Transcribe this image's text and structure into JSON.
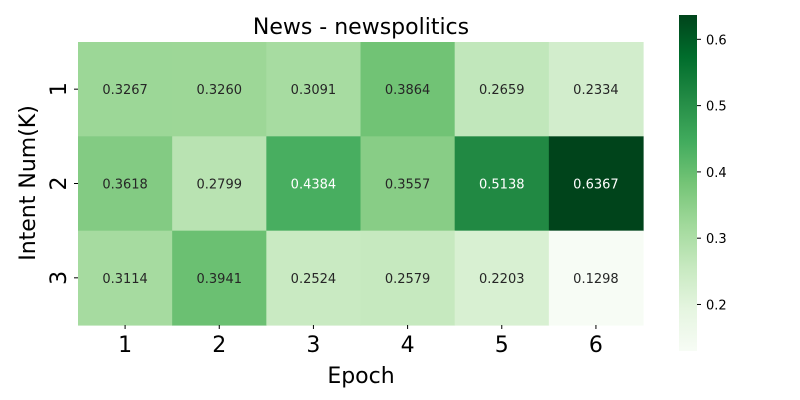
{
  "chart_data": {
    "type": "heatmap",
    "title": "News - newspolitics",
    "xlabel": "Epoch",
    "ylabel": "Intent Num(K)",
    "x_categories": [
      "1",
      "2",
      "3",
      "4",
      "5",
      "6"
    ],
    "y_categories": [
      "1",
      "2",
      "3"
    ],
    "values": [
      [
        0.3267,
        0.326,
        0.3091,
        0.3864,
        0.2659,
        0.2334
      ],
      [
        0.3618,
        0.2799,
        0.4384,
        0.3557,
        0.5138,
        0.6367
      ],
      [
        0.3114,
        0.3941,
        0.2524,
        0.2579,
        0.2203,
        0.1298
      ]
    ],
    "cell_labels": [
      [
        "0.3267",
        "0.3260",
        "0.3091",
        "0.3864",
        "0.2659",
        "0.2334"
      ],
      [
        "0.3618",
        "0.2799",
        "0.4384",
        "0.3557",
        "0.5138",
        "0.6367"
      ],
      [
        "0.3114",
        "0.3941",
        "0.2524",
        "0.2579",
        "0.2203",
        "0.1298"
      ]
    ],
    "colorbar": {
      "range": [
        0.1298,
        0.6367
      ],
      "ticks": [
        0.2,
        0.3,
        0.4,
        0.5,
        0.6
      ],
      "tick_labels": [
        "0.2",
        "0.3",
        "0.4",
        "0.5",
        "0.6"
      ]
    },
    "colormap": "Greens",
    "grid": false,
    "legend": "colorbar-right"
  }
}
